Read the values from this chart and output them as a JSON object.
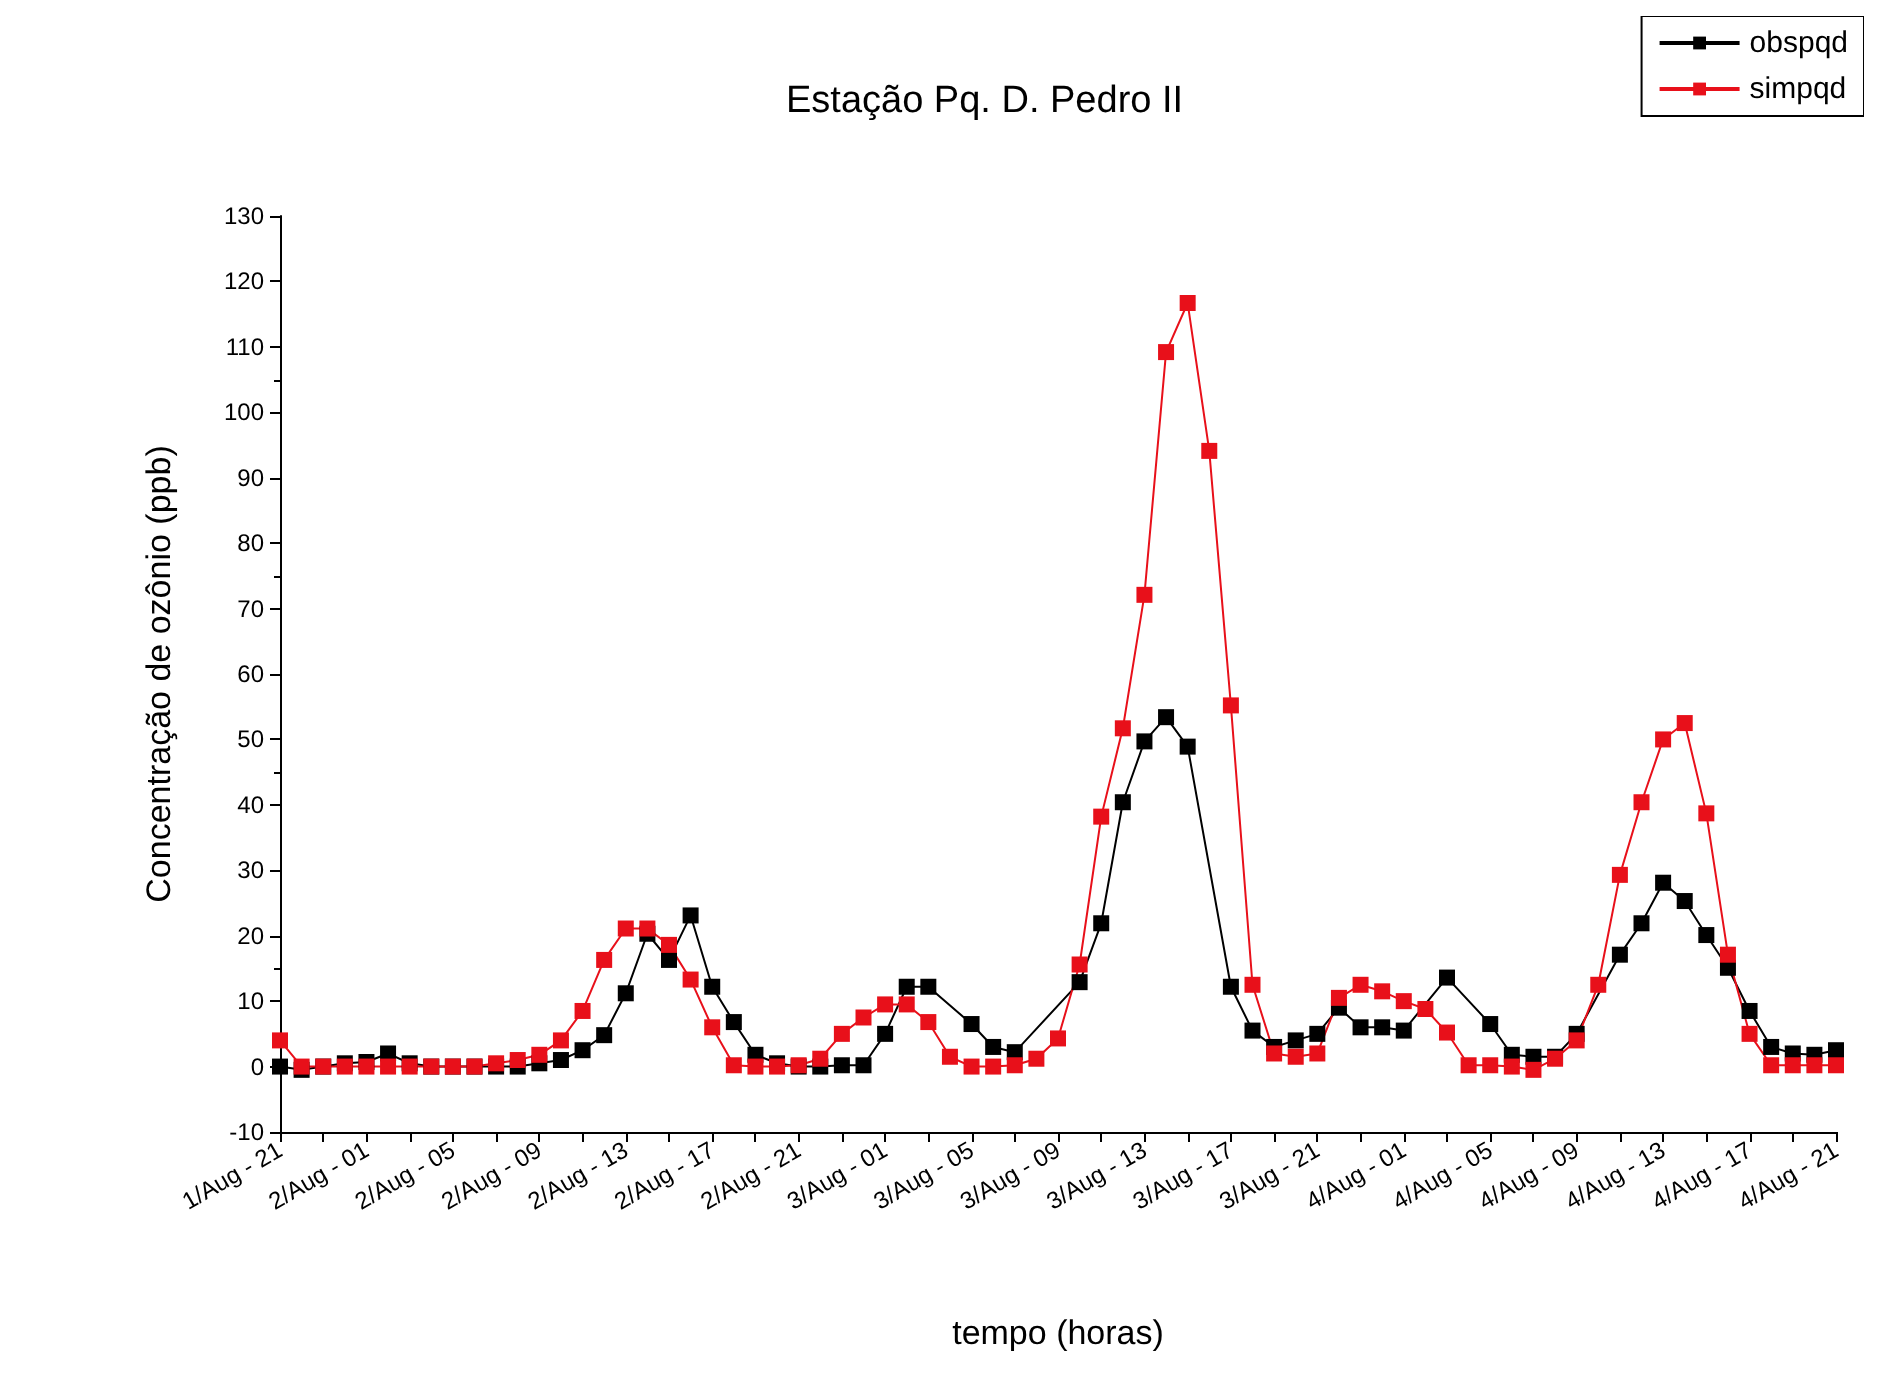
{
  "chart_data": {
    "type": "line",
    "title": "Estação Pq. D. Pedro II",
    "xlabel": "tempo (horas)",
    "ylabel": "Concentração de ozônio (ppb)",
    "categories": [
      "1/Aug - 21",
      null,
      null,
      null,
      "2/Aug - 01",
      null,
      null,
      null,
      "2/Aug - 05",
      null,
      null,
      null,
      "2/Aug - 09",
      null,
      null,
      null,
      "2/Aug - 13",
      null,
      null,
      null,
      "2/Aug - 17",
      null,
      null,
      null,
      "2/Aug - 21",
      null,
      null,
      null,
      "3/Aug - 01",
      null,
      null,
      null,
      "3/Aug - 05",
      null,
      null,
      null,
      "3/Aug - 09",
      null,
      null,
      null,
      "3/Aug - 13",
      null,
      null,
      null,
      "3/Aug - 17",
      null,
      null,
      null,
      "3/Aug - 21",
      null,
      null,
      null,
      "4/Aug - 01",
      null,
      null,
      null,
      "4/Aug - 05",
      null,
      null,
      null,
      "4/Aug - 09",
      null,
      null,
      null,
      "4/Aug - 13",
      null,
      null,
      null,
      "4/Aug - 17",
      null,
      null,
      null,
      "4/Aug - 21"
    ],
    "series": [
      {
        "name": "obspqd",
        "color": "#000000",
        "values": [
          0,
          -0.5,
          0,
          0.5,
          0.7,
          2,
          0.5,
          0,
          0,
          0,
          0,
          0,
          0.5,
          1,
          2.5,
          4.8,
          11.2,
          20.3,
          16.3,
          23.1,
          12.2,
          6.8,
          1.8,
          0.5,
          0,
          0,
          0.2,
          0.2,
          5,
          12.2,
          12.2,
          null,
          6.5,
          3,
          2.2,
          null,
          null,
          12.9,
          21.9,
          40.4,
          49.7,
          53.4,
          48.9,
          null,
          12.2,
          5.5,
          3,
          4,
          5,
          9,
          6,
          6,
          5.5,
          null,
          13.6,
          null,
          6.5,
          1.8,
          1.5,
          1.5,
          5,
          null,
          17.1,
          21.9,
          28.1,
          25.3,
          20.1,
          15.1,
          8.5,
          3,
          2,
          1.8,
          2.5
        ]
      },
      {
        "name": "simpqd",
        "color": "#e8101a",
        "values": [
          4,
          0,
          0,
          0,
          0,
          0,
          0,
          0,
          0,
          0,
          0.5,
          1,
          1.8,
          4,
          8.5,
          16.3,
          21.1,
          21.1,
          18.6,
          13.3,
          6,
          0.2,
          0,
          0,
          0.2,
          1.2,
          5,
          7.5,
          9.5,
          9.5,
          6.8,
          1.5,
          0,
          0,
          0.2,
          1.2,
          4.3,
          15.6,
          38.2,
          51.7,
          72.1,
          109.2,
          116.7,
          94.1,
          55.2,
          12.5,
          2,
          1.5,
          2,
          10.5,
          12.5,
          11.5,
          10,
          8.8,
          5.2,
          0.2,
          0.2,
          0,
          -0.5,
          1.2,
          4,
          12.5,
          29.3,
          40.4,
          50,
          52.5,
          38.7,
          17.1,
          5,
          0.2,
          0.2,
          0.2,
          0.2
        ]
      }
    ],
    "ylim": [
      -10,
      130
    ],
    "yticks": [
      -10,
      0,
      10,
      20,
      30,
      40,
      50,
      60,
      70,
      80,
      90,
      100,
      110,
      120,
      130
    ],
    "grid": false,
    "legend": "top right",
    "marker": "square",
    "line_style": "solid"
  }
}
